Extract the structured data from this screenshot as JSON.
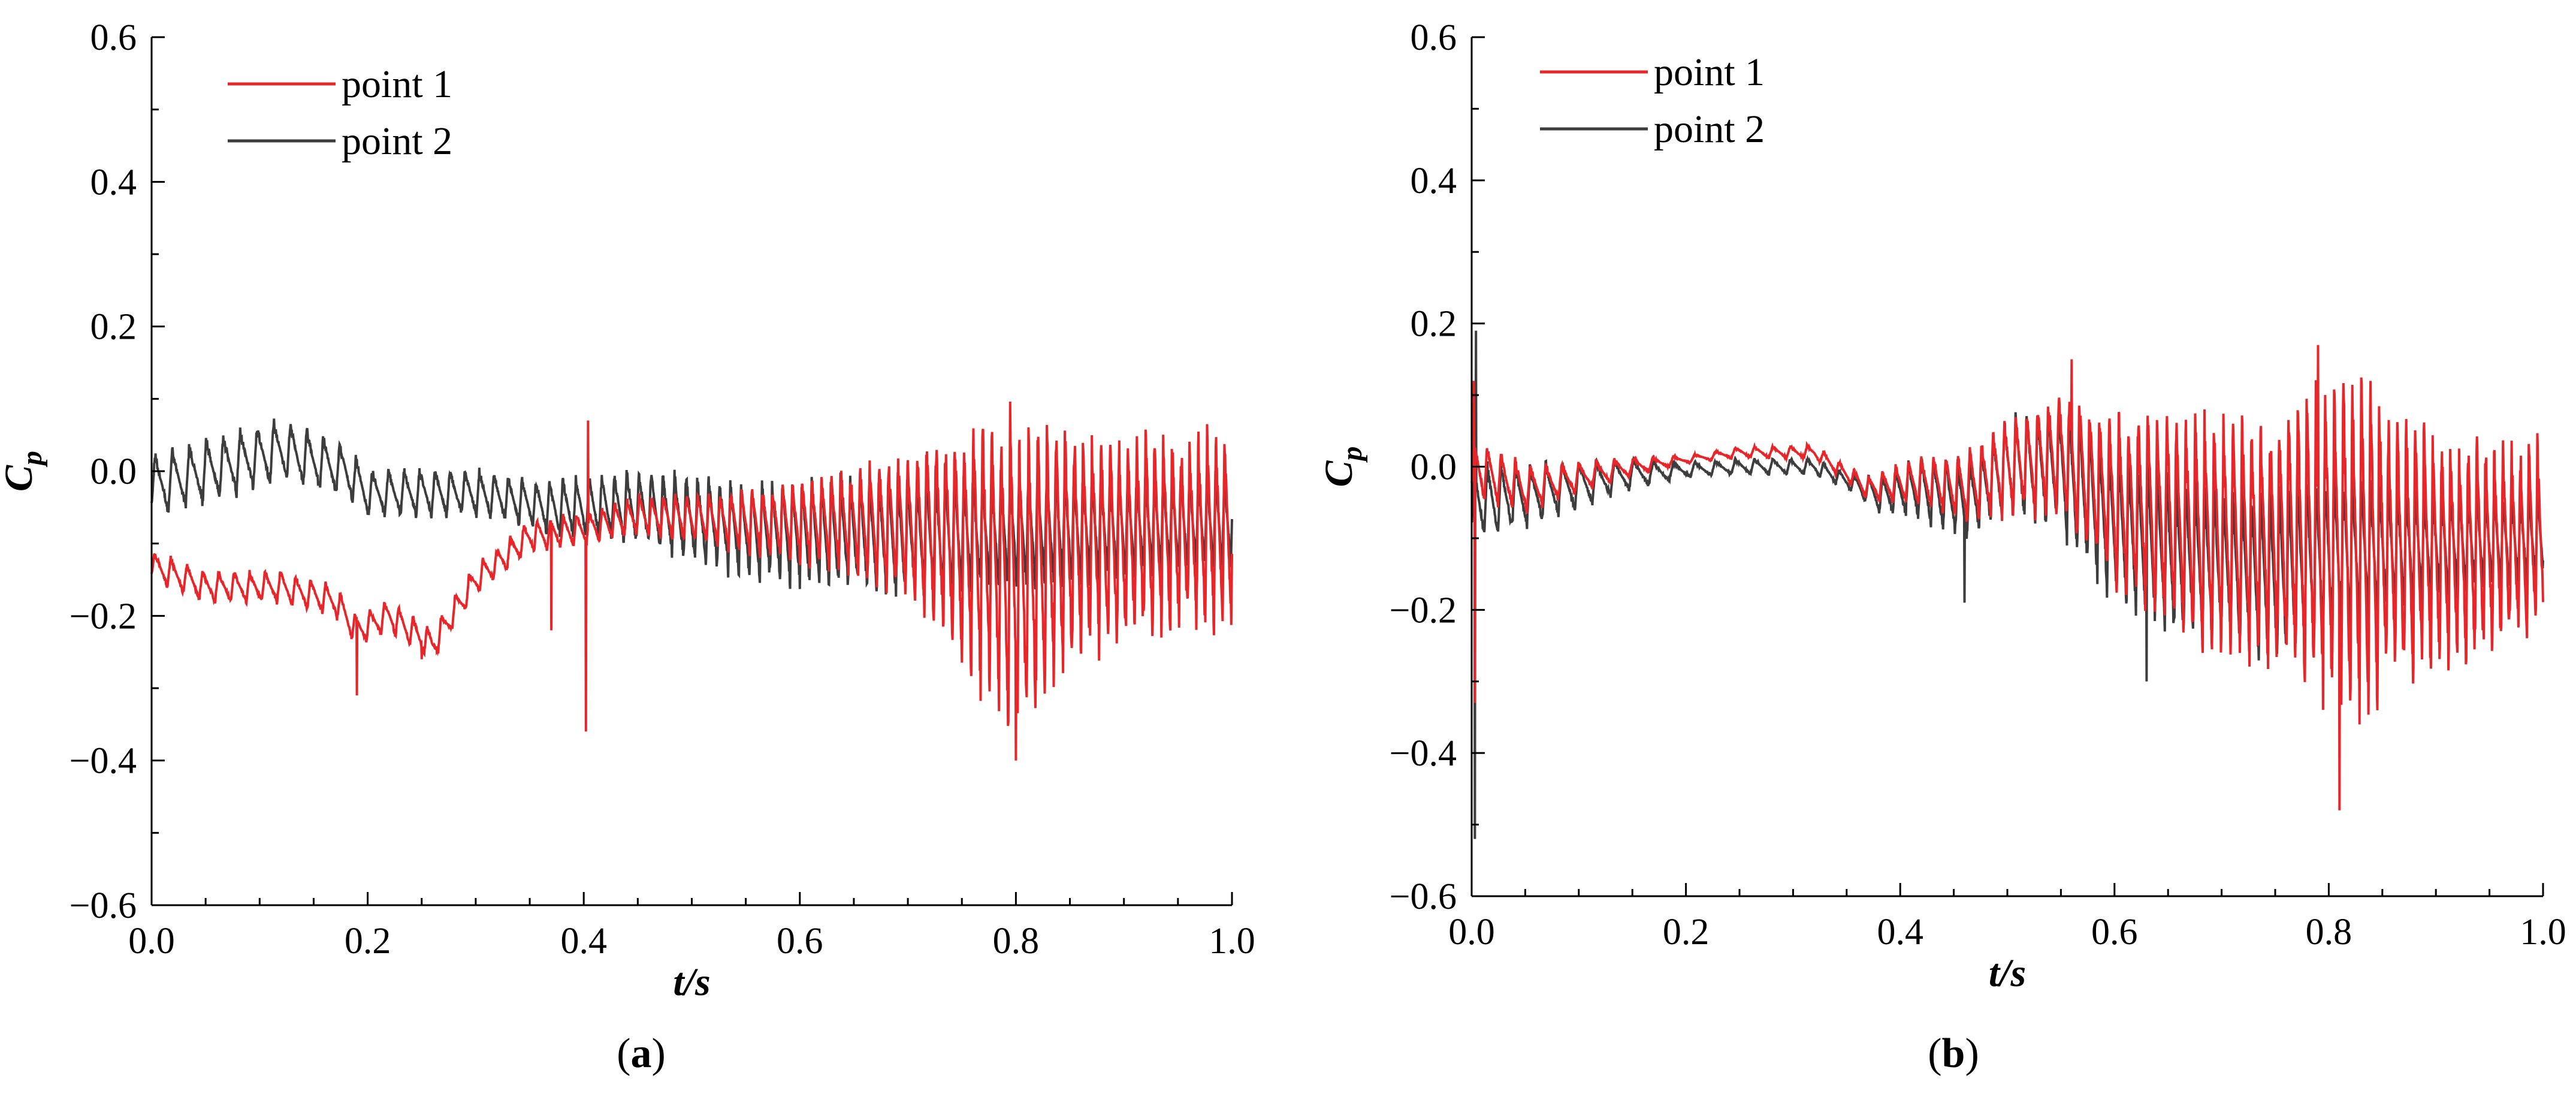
{
  "chart_data": [
    {
      "type": "line",
      "caption_letter": "a",
      "xlabel": "t/s",
      "ylabel_main": "C",
      "ylabel_sub": "p",
      "xlim": [
        0.0,
        1.0
      ],
      "ylim": [
        -0.6,
        0.6
      ],
      "xticks": [
        "0.0",
        "0.2",
        "0.4",
        "0.6",
        "0.8",
        "1.0"
      ],
      "yticks": [
        "0.6",
        "0.4",
        "0.2",
        "0.0",
        "−0.2",
        "−0.4",
        "−0.6"
      ],
      "legend_position": "top-left",
      "series": [
        {
          "name": "point 2",
          "color": "#3d3d3d",
          "profile": [
            [
              0.0,
              -0.02
            ],
            [
              0.05,
              0.0
            ],
            [
              0.12,
              0.03
            ],
            [
              0.18,
              0.0
            ],
            [
              0.2,
              -0.03
            ],
            [
              0.25,
              -0.03
            ],
            [
              0.3,
              -0.03
            ],
            [
              0.37,
              -0.05
            ],
            [
              0.4,
              -0.05
            ],
            [
              0.45,
              -0.05
            ],
            [
              0.55,
              -0.08
            ],
            [
              0.7,
              -0.09
            ],
            [
              0.85,
              -0.08
            ],
            [
              1.0,
              -0.07
            ]
          ],
          "amplitude": [
            [
              0.0,
              0.04
            ],
            [
              0.12,
              0.04
            ],
            [
              0.2,
              0.03
            ],
            [
              0.35,
              0.03
            ],
            [
              0.4,
              0.04
            ],
            [
              0.55,
              0.06
            ],
            [
              0.7,
              0.08
            ],
            [
              0.85,
              0.07
            ],
            [
              1.0,
              0.06
            ]
          ],
          "period": [
            [
              0.0,
              0.016
            ],
            [
              0.2,
              0.015
            ],
            [
              0.4,
              0.012
            ],
            [
              0.6,
              0.009
            ],
            [
              1.0,
              0.008
            ]
          ],
          "spikes": []
        },
        {
          "name": "point 1",
          "color": "#e8262a",
          "profile": [
            [
              0.0,
              -0.13
            ],
            [
              0.05,
              -0.16
            ],
            [
              0.12,
              -0.16
            ],
            [
              0.17,
              -0.18
            ],
            [
              0.19,
              -0.22
            ],
            [
              0.22,
              -0.2
            ],
            [
              0.26,
              -0.24
            ],
            [
              0.3,
              -0.15
            ],
            [
              0.35,
              -0.09
            ],
            [
              0.4,
              -0.08
            ],
            [
              0.45,
              -0.06
            ],
            [
              0.55,
              -0.07
            ],
            [
              0.65,
              -0.07
            ],
            [
              0.72,
              -0.08
            ],
            [
              0.78,
              -0.12
            ],
            [
              0.8,
              -0.15
            ],
            [
              0.85,
              -0.1
            ],
            [
              1.0,
              -0.08
            ]
          ],
          "amplitude": [
            [
              0.0,
              0.02
            ],
            [
              0.3,
              0.02
            ],
            [
              0.4,
              0.02
            ],
            [
              0.5,
              0.03
            ],
            [
              0.6,
              0.05
            ],
            [
              0.7,
              0.09
            ],
            [
              0.76,
              0.16
            ],
            [
              0.8,
              0.2
            ],
            [
              0.85,
              0.15
            ],
            [
              0.9,
              0.13
            ],
            [
              1.0,
              0.12
            ]
          ],
          "period": [
            [
              0.0,
              0.015
            ],
            [
              0.4,
              0.012
            ],
            [
              0.6,
              0.009
            ],
            [
              1.0,
              0.008
            ]
          ],
          "spikes": [
            [
              0.19,
              -0.31
            ],
            [
              0.25,
              -0.26
            ],
            [
              0.37,
              -0.22
            ],
            [
              0.402,
              -0.36
            ],
            [
              0.404,
              0.07
            ],
            [
              0.8,
              -0.4
            ]
          ]
        }
      ]
    },
    {
      "type": "line",
      "caption_letter": "b",
      "xlabel": "t/s",
      "ylabel_main": "C",
      "ylabel_sub": "p",
      "xlim": [
        0.0,
        1.0
      ],
      "ylim": [
        -0.6,
        0.6
      ],
      "xticks": [
        "0.0",
        "0.2",
        "0.4",
        "0.6",
        "0.8",
        "1.0"
      ],
      "yticks": [
        "0.6",
        "0.4",
        "0.2",
        "0.0",
        "−0.2",
        "−0.4",
        "−0.6"
      ],
      "legend_position": "top-left",
      "series": [
        {
          "name": "point 2",
          "color": "#3d3d3d",
          "profile": [
            [
              0.0,
              -0.05
            ],
            [
              0.05,
              -0.04
            ],
            [
              0.15,
              -0.01
            ],
            [
              0.25,
              0.0
            ],
            [
              0.32,
              0.0
            ],
            [
              0.38,
              -0.04
            ],
            [
              0.42,
              -0.03
            ],
            [
              0.46,
              -0.05
            ],
            [
              0.5,
              0.0
            ],
            [
              0.55,
              0.0
            ],
            [
              0.6,
              -0.08
            ],
            [
              0.65,
              -0.12
            ],
            [
              0.75,
              -0.15
            ],
            [
              0.8,
              -0.12
            ],
            [
              0.9,
              -0.11
            ],
            [
              1.0,
              -0.1
            ]
          ],
          "amplitude": [
            [
              0.0,
              0.05
            ],
            [
              0.1,
              0.03
            ],
            [
              0.2,
              0.01
            ],
            [
              0.35,
              0.01
            ],
            [
              0.42,
              0.04
            ],
            [
              0.5,
              0.06
            ],
            [
              0.6,
              0.1
            ],
            [
              0.7,
              0.1
            ],
            [
              0.78,
              0.12
            ],
            [
              0.9,
              0.07
            ],
            [
              1.0,
              0.06
            ]
          ],
          "period": [
            [
              0.0,
              0.012
            ],
            [
              0.2,
              0.02
            ],
            [
              0.4,
              0.012
            ],
            [
              0.6,
              0.009
            ],
            [
              1.0,
              0.008
            ]
          ],
          "spikes": [
            [
              0.003,
              -0.52
            ],
            [
              0.004,
              0.19
            ],
            [
              0.46,
              -0.19
            ],
            [
              0.63,
              -0.3
            ]
          ]
        },
        {
          "name": "point 1",
          "color": "#e8262a",
          "profile": [
            [
              0.0,
              0.0
            ],
            [
              0.05,
              -0.03
            ],
            [
              0.15,
              0.0
            ],
            [
              0.25,
              0.02
            ],
            [
              0.32,
              0.02
            ],
            [
              0.37,
              -0.03
            ],
            [
              0.42,
              -0.02
            ],
            [
              0.46,
              -0.03
            ],
            [
              0.5,
              0.0
            ],
            [
              0.55,
              0.02
            ],
            [
              0.6,
              -0.05
            ],
            [
              0.7,
              -0.1
            ],
            [
              0.8,
              -0.1
            ],
            [
              0.9,
              -0.12
            ],
            [
              1.0,
              -0.1
            ]
          ],
          "amplitude": [
            [
              0.0,
              0.04
            ],
            [
              0.1,
              0.02
            ],
            [
              0.2,
              0.005
            ],
            [
              0.35,
              0.01
            ],
            [
              0.45,
              0.04
            ],
            [
              0.55,
              0.08
            ],
            [
              0.65,
              0.14
            ],
            [
              0.75,
              0.16
            ],
            [
              0.82,
              0.22
            ],
            [
              0.9,
              0.15
            ],
            [
              1.0,
              0.12
            ]
          ],
          "period": [
            [
              0.0,
              0.012
            ],
            [
              0.2,
              0.02
            ],
            [
              0.4,
              0.012
            ],
            [
              0.6,
              0.009
            ],
            [
              1.0,
              0.008
            ]
          ],
          "spikes": [
            [
              0.002,
              0.12
            ],
            [
              0.003,
              -0.33
            ],
            [
              0.56,
              0.15
            ],
            [
              0.79,
              0.17
            ],
            [
              0.81,
              -0.48
            ]
          ]
        }
      ]
    }
  ]
}
